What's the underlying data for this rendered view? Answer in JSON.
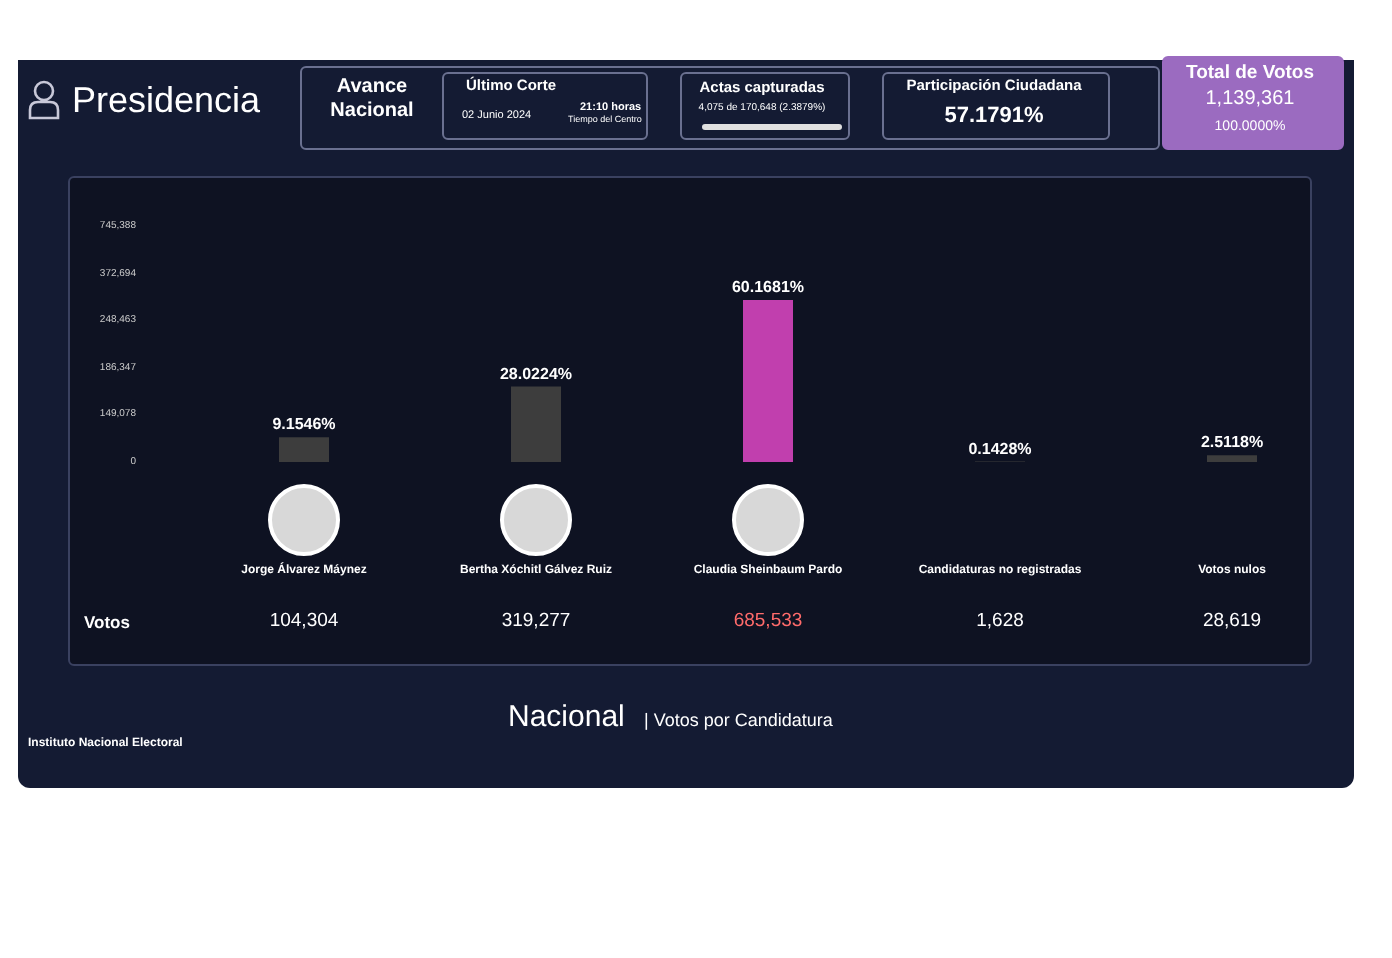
{
  "chart_data": {
    "type": "bar",
    "title": "Presidencia",
    "categories": [
      "Jorge Álvarez Máynez",
      "Bertha Xóchitl Gálvez Ruiz",
      "Claudia Sheinbaum Pardo",
      "Candidaturas no registradas",
      "Votos nulos"
    ],
    "values": [
      9.1546,
      28.0224,
      60.1681,
      0.1428,
      2.5118
    ],
    "colors": [
      "#3d3d3d",
      "#3d3d3d",
      "#c13fae",
      "#3d3d3d",
      "#3d3d3d"
    ],
    "value_labels": [
      "9.1546%",
      "28.0224%",
      "60.1681%",
      "0.1428%",
      "2.5118%"
    ],
    "annotations": [
      "0",
      "149,078",
      "186,347",
      "248,463",
      "372,694",
      "745,388",
      "Avance Nacional",
      "Último Corte",
      "02 Junio 2024",
      "21:10 horas",
      "Tiempo del Centro",
      "Actas capturadas",
      "4,075 de 170,648 (2.3879%)",
      "Participación Ciudadana",
      "57.1791%",
      "Total de Votos",
      "1,139,361",
      "100.0000%",
      "Votos",
      "104,304",
      "319,277",
      "685,533",
      "1,628",
      "28,619",
      "Instituto Nacional Electoral",
      "Nacional",
      "| Votos por Candidatura"
    ]
  }
}
